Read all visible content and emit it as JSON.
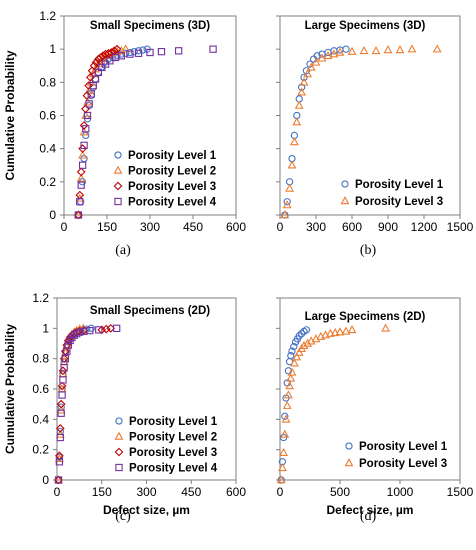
{
  "figure": {
    "ylabel": "Cumulative Probability",
    "xlabel": "Defect size, µm",
    "y_ticks": [
      "0",
      "0.2",
      "0.4",
      "0.6",
      "0.8",
      "1",
      "1.2"
    ]
  },
  "chart_data": [
    {
      "type": "scatter",
      "panel": "(a)",
      "title": "Small Specimens (3D)",
      "xlabel": "",
      "ylabel": "Cumulative Probability",
      "xlim": [
        0,
        600
      ],
      "ylim": [
        0,
        1.2
      ],
      "x_ticks": [
        "0",
        "150",
        "300",
        "450",
        "600"
      ],
      "legend_position": "bottom-right",
      "grid": false,
      "series": [
        {
          "name": "Porosity Level 1",
          "marker": "circle",
          "color": "#4472C4",
          "x": [
            52,
            58,
            64,
            70,
            76,
            82,
            88,
            95,
            102,
            110,
            120,
            130,
            142,
            155,
            170,
            185,
            200,
            215,
            230,
            245,
            260,
            275,
            290
          ],
          "y": [
            0.0,
            0.08,
            0.2,
            0.34,
            0.48,
            0.58,
            0.66,
            0.72,
            0.77,
            0.82,
            0.86,
            0.89,
            0.92,
            0.94,
            0.95,
            0.96,
            0.97,
            0.975,
            0.98,
            0.985,
            0.99,
            0.995,
            1.0
          ]
        },
        {
          "name": "Porosity Level 2",
          "marker": "triangle",
          "color": "#ED7D31",
          "x": [
            50,
            55,
            60,
            65,
            70,
            76,
            82,
            88,
            95,
            102,
            110,
            120,
            130,
            140,
            150,
            160,
            172,
            185,
            200,
            215
          ],
          "y": [
            0.0,
            0.1,
            0.22,
            0.36,
            0.5,
            0.6,
            0.68,
            0.75,
            0.8,
            0.85,
            0.88,
            0.91,
            0.93,
            0.95,
            0.96,
            0.97,
            0.98,
            0.985,
            0.99,
            1.0
          ]
        },
        {
          "name": "Porosity Level 3",
          "marker": "diamond",
          "color": "#C00000",
          "x": [
            50,
            55,
            60,
            65,
            70,
            75,
            80,
            86,
            92,
            98,
            105,
            112,
            120,
            128,
            136,
            145,
            155,
            165,
            175,
            185
          ],
          "y": [
            0.0,
            0.12,
            0.26,
            0.4,
            0.54,
            0.64,
            0.72,
            0.78,
            0.83,
            0.87,
            0.9,
            0.92,
            0.94,
            0.95,
            0.96,
            0.97,
            0.975,
            0.98,
            0.99,
            1.0
          ]
        },
        {
          "name": "Porosity Level 4",
          "marker": "square",
          "color": "#7030A0",
          "x": [
            50,
            55,
            60,
            65,
            70,
            76,
            82,
            88,
            95,
            102,
            110,
            120,
            132,
            145,
            160,
            180,
            200,
            230,
            260,
            300,
            340,
            400,
            520
          ],
          "y": [
            0.0,
            0.08,
            0.18,
            0.3,
            0.42,
            0.52,
            0.6,
            0.67,
            0.73,
            0.78,
            0.82,
            0.86,
            0.89,
            0.91,
            0.93,
            0.95,
            0.96,
            0.97,
            0.975,
            0.98,
            0.985,
            0.99,
            1.0
          ]
        }
      ]
    },
    {
      "type": "scatter",
      "panel": "(b)",
      "title": "Large Specimens (3D)",
      "xlabel": "",
      "ylabel": "",
      "xlim": [
        0,
        1500
      ],
      "ylim": [
        0,
        1.2
      ],
      "x_ticks": [
        "0",
        "300",
        "600",
        "900",
        "1200",
        "1500"
      ],
      "legend_position": "bottom-right",
      "grid": false,
      "series": [
        {
          "name": "Porosity Level 1",
          "marker": "circle",
          "color": "#4472C4",
          "x": [
            40,
            60,
            80,
            100,
            120,
            140,
            160,
            180,
            200,
            220,
            250,
            280,
            310,
            350,
            400,
            450,
            500,
            550
          ],
          "y": [
            0.0,
            0.08,
            0.2,
            0.34,
            0.48,
            0.6,
            0.7,
            0.77,
            0.83,
            0.87,
            0.91,
            0.94,
            0.96,
            0.97,
            0.98,
            0.99,
            0.995,
            1.0
          ]
        },
        {
          "name": "Porosity Level 3",
          "marker": "triangle",
          "color": "#ED7D31",
          "x": [
            40,
            60,
            80,
            100,
            120,
            140,
            160,
            180,
            200,
            230,
            260,
            300,
            350,
            400,
            450,
            500,
            600,
            700,
            800,
            900,
            1000,
            1100,
            1310
          ],
          "y": [
            0.0,
            0.06,
            0.16,
            0.3,
            0.44,
            0.56,
            0.66,
            0.74,
            0.8,
            0.85,
            0.89,
            0.92,
            0.945,
            0.96,
            0.97,
            0.98,
            0.985,
            0.99,
            0.99,
            0.995,
            0.995,
            1.0,
            1.0
          ]
        }
      ]
    },
    {
      "type": "scatter",
      "panel": "(c)",
      "title": "Small Specimens (2D)",
      "xlabel": "Defect size, µm",
      "ylabel": "Cumulative Probability",
      "xlim": [
        0,
        600
      ],
      "ylim": [
        0,
        1.2
      ],
      "x_ticks": [
        "0",
        "150",
        "300",
        "450",
        "600"
      ],
      "legend_position": "bottom-right",
      "grid": false,
      "series": [
        {
          "name": "Porosity Level 1",
          "marker": "circle",
          "color": "#4472C4",
          "x": [
            5,
            8,
            11,
            14,
            17,
            20,
            24,
            28,
            33,
            38,
            44,
            50,
            58,
            66,
            76,
            88,
            100,
            115
          ],
          "y": [
            0.0,
            0.15,
            0.32,
            0.48,
            0.6,
            0.7,
            0.78,
            0.84,
            0.88,
            0.91,
            0.93,
            0.95,
            0.965,
            0.975,
            0.985,
            0.99,
            0.995,
            1.0
          ]
        },
        {
          "name": "Porosity Level 2",
          "marker": "triangle",
          "color": "#ED7D31",
          "x": [
            5,
            8,
            11,
            14,
            17,
            20,
            24,
            28,
            33,
            38,
            44,
            50,
            58,
            66,
            76,
            88
          ],
          "y": [
            0.0,
            0.14,
            0.3,
            0.46,
            0.6,
            0.7,
            0.78,
            0.84,
            0.89,
            0.92,
            0.94,
            0.96,
            0.975,
            0.985,
            0.995,
            1.0
          ]
        },
        {
          "name": "Porosity Level 3",
          "marker": "diamond",
          "color": "#C00000",
          "x": [
            5,
            8,
            11,
            14,
            17,
            20,
            24,
            28,
            33,
            38,
            44,
            50,
            58,
            66,
            76,
            90,
            150,
            165,
            180
          ],
          "y": [
            0.0,
            0.16,
            0.34,
            0.5,
            0.62,
            0.72,
            0.8,
            0.85,
            0.89,
            0.92,
            0.94,
            0.955,
            0.965,
            0.975,
            0.98,
            0.985,
            0.99,
            0.995,
            1.0
          ]
        },
        {
          "name": "Porosity Level 4",
          "marker": "square",
          "color": "#7030A0",
          "x": [
            5,
            8,
            11,
            14,
            17,
            20,
            24,
            28,
            33,
            38,
            44,
            50,
            58,
            66,
            76,
            90,
            110,
            140,
            200
          ],
          "y": [
            0.0,
            0.12,
            0.28,
            0.44,
            0.56,
            0.66,
            0.74,
            0.8,
            0.85,
            0.89,
            0.92,
            0.94,
            0.955,
            0.965,
            0.975,
            0.98,
            0.985,
            0.99,
            1.0
          ]
        }
      ]
    },
    {
      "type": "scatter",
      "panel": "(d)",
      "title": "Large Specimens (2D)",
      "xlabel": "Defect size, µm",
      "ylabel": "",
      "xlim": [
        0,
        1500
      ],
      "ylim": [
        0,
        1.2
      ],
      "x_ticks": [
        "0",
        "500",
        "1000",
        "1500"
      ],
      "legend_position": "bottom-right",
      "grid": false,
      "series": [
        {
          "name": "Porosity Level 1",
          "marker": "circle",
          "color": "#4472C4",
          "x": [
            10,
            20,
            30,
            40,
            50,
            60,
            70,
            80,
            90,
            100,
            115,
            130,
            145,
            160,
            180,
            200,
            220
          ],
          "y": [
            0.0,
            0.12,
            0.28,
            0.42,
            0.54,
            0.64,
            0.72,
            0.78,
            0.82,
            0.85,
            0.88,
            0.91,
            0.93,
            0.95,
            0.965,
            0.98,
            0.99
          ]
        },
        {
          "name": "Porosity Level 3",
          "marker": "triangle",
          "color": "#ED7D31",
          "x": [
            10,
            20,
            30,
            40,
            50,
            60,
            70,
            80,
            90,
            100,
            120,
            140,
            160,
            180,
            200,
            230,
            260,
            300,
            340,
            380,
            420,
            460,
            500,
            550,
            600,
            880
          ],
          "y": [
            0.0,
            0.08,
            0.18,
            0.3,
            0.4,
            0.49,
            0.56,
            0.62,
            0.67,
            0.71,
            0.77,
            0.81,
            0.84,
            0.865,
            0.885,
            0.9,
            0.915,
            0.93,
            0.945,
            0.955,
            0.965,
            0.97,
            0.975,
            0.98,
            0.99,
            1.0
          ]
        }
      ]
    }
  ]
}
